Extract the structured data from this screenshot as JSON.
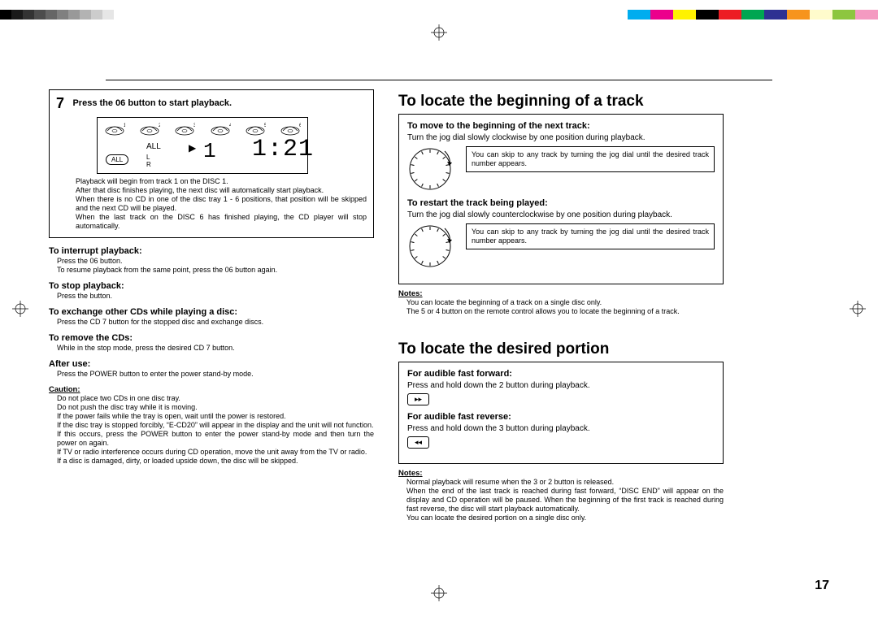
{
  "colorbar_gray_steps": [
    "#000000",
    "#1a1a1a",
    "#333333",
    "#4d4d4d",
    "#666666",
    "#808080",
    "#999999",
    "#b3b3b3",
    "#cccccc",
    "#e6e6e6",
    "#ffffff"
  ],
  "colorbar_colors": [
    "#00adef",
    "#ec008c",
    "#fff200",
    "#000000",
    "#ed1c24",
    "#00a651",
    "#2e3192",
    "#f7941d",
    "#fffbcc",
    "#8dc63f",
    "#f49ac1"
  ],
  "gray_seg_w": 14,
  "color_seg_w": 28,
  "left": {
    "step_num": "7",
    "step_title": "Press the 06    button to start playback.",
    "display": {
      "all_label": "ALL",
      "mid_label": "ALL",
      "play_glyph": "▶",
      "track": "1",
      "time": "1:21",
      "lr": "L\nR"
    },
    "step_notes": "Playback will begin from track 1 on the DISC 1.\nAfter that disc finishes playing, the next disc will automatically start playback.\nWhen there is no CD in one of the disc tray 1 - 6 positions, that position will be skipped and the next CD will be played.\nWhen the last track on the DISC 6 has finished playing, the CD player will stop automatically.",
    "sections": [
      {
        "head": "To interrupt playback:",
        "body": "Press the 06    button.\nTo resume playback from the same point, press the 06    button again."
      },
      {
        "head": "To stop playback:",
        "body": "Press the     button."
      },
      {
        "head": "To exchange other CDs while playing a disc:",
        "body": "Press the CD 7  button for the stopped disc and exchange discs."
      },
      {
        "head": "To remove the CDs:",
        "body": "While in the stop mode, press the desired CD 7  button."
      },
      {
        "head": "After use:",
        "body": "Press the POWER button to enter the power stand-by mode."
      }
    ],
    "caution_head": "Caution:",
    "caution": "Do not place two CDs in one disc tray.\nDo not push the disc tray while it is moving.\nIf the power fails while the tray is open, wait until the power is restored.\nIf the disc tray is stopped forcibly, “E-CD20” will appear in the display and the unit will not function.\nIf this occurs, press the POWER button to enter the power stand-by mode and then turn the power on again.\nIf TV or radio interference occurs during CD operation, move the unit away from the TV or radio.\nIf a disc is damaged, dirty, or loaded upside down, the disc will be skipped."
  },
  "right": {
    "sec1_title": "To locate the beginning of a track",
    "sec1_items": [
      {
        "head": "To move to the beginning of the next track:",
        "desc": "Turn the jog dial slowly clockwise by one position during playback.",
        "note": "You can skip to any track by turning the jog dial until the desired track number appears."
      },
      {
        "head": "To restart the track being played:",
        "desc": "Turn the jog dial slowly counterclockwise by one position during playback.",
        "note": "You can skip to any track by turning the jog dial until the desired track number appears."
      }
    ],
    "sec1_notes_head": "Notes:",
    "sec1_notes": "You can locate the beginning of a track on a single disc only.\nThe 5     or 4     button on the remote control allows you to locate the beginning of a track.",
    "sec2_title": "To locate the desired portion",
    "sec2_items": [
      {
        "head": "For audible fast forward:",
        "desc": "Press and hold down the 2      button during playback.",
        "btn": "▸▸"
      },
      {
        "head": "For audible fast reverse:",
        "desc": "Press and hold down the 3      button during playback.",
        "btn": "◂◂"
      }
    ],
    "sec2_notes_head": "Notes:",
    "sec2_notes": "Normal playback will resume when the 3     or 2     button is released.\nWhen the end of the last track is reached during fast forward, “DISC END” will appear on the display and CD operation will be paused. When the beginning of the first track is reached during fast reverse, the disc will start playback automatically.\nYou can locate the desired portion on a single disc only."
  },
  "page_number": "17",
  "jog_tick_count": 14
}
